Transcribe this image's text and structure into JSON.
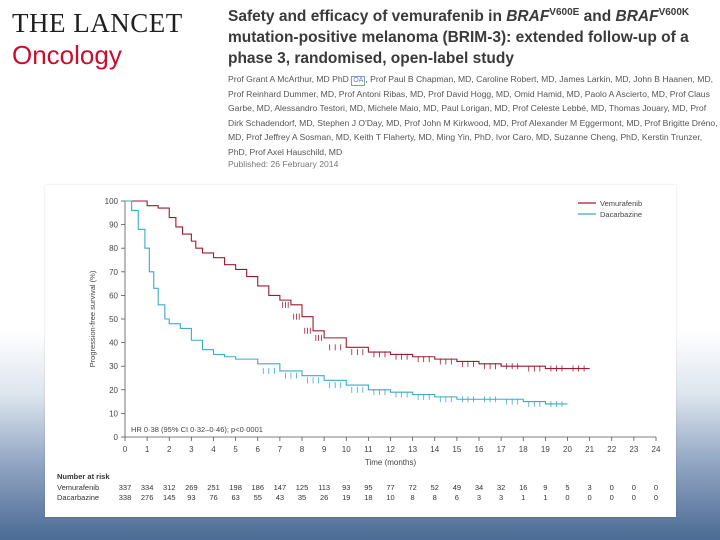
{
  "journal": {
    "name": "THE LANCET",
    "section": "Oncology"
  },
  "article": {
    "title_pre": "Safety and efficacy of vemurafenib in ",
    "gene1": "BRAF",
    "sup1": "V600E",
    "and": " and ",
    "gene2": "BRAF",
    "sup2": "V600K",
    "title_post": " mutation-positive melanoma (BRIM-3): extended follow-up of a phase 3, randomised, open-label study",
    "authors_pre": "Prof Grant A McArthur, MD PhD",
    "badge": "OA",
    "authors_post": ", Prof Paul B Chapman, MD, Caroline Robert, MD, James Larkin, MD, John B Haanen, MD, Prof Reinhard Dummer, MD, Prof Antoni Ribas, MD, Prof David Hogg, MD, Omid Hamid, MD, Paolo A Ascierto, MD, Prof Claus Garbe, MD, Alessandro Testori, MD, Michele Maio, MD, Paul Lorigan, MD, Prof Celeste Lebbé, MD, Thomas Jouary, MD, Prof Dirk Schadendorf, MD, Stephen J O'Day, MD, Prof John M Kirkwood, MD, Prof Alexander M Eggermont, MD, Prof Brigitte Dréno, MD, Prof Jeffrey A Sosman, MD, Keith T Flaherty, MD, Ming Yin, PhD, Ivor Caro, MD, Suzanne Cheng, PhD, Kerstin Trunzer, PhD, Prof Axel Hauschild, MD",
    "published": "Published: 26 February 2014"
  },
  "chart_data": {
    "type": "line",
    "title": "",
    "xlabel": "Time (months)",
    "ylabel": "Progression-free survival (%)",
    "xlim": [
      0,
      24
    ],
    "ylim": [
      0,
      100
    ],
    "xticks": [
      "0",
      "1",
      "2",
      "3",
      "4",
      "5",
      "6",
      "7",
      "8",
      "9",
      "10",
      "11",
      "12",
      "13",
      "14",
      "15",
      "16",
      "17",
      "18",
      "19",
      "20",
      "21",
      "22",
      "23",
      "24"
    ],
    "yticks": [
      "0",
      "10",
      "20",
      "30",
      "40",
      "50",
      "60",
      "70",
      "80",
      "90",
      "100"
    ],
    "annotation": "HR 0·38 (95% CI 0·32–0·46); p<0·0001",
    "legend": [
      "Vemurafenib",
      "Dacarbazine"
    ],
    "colors": [
      "#9b1b30",
      "#3fa9c9"
    ],
    "series": [
      {
        "name": "Vemurafenib",
        "x": [
          0,
          0.5,
          1,
          1.5,
          2,
          2.3,
          2.6,
          3,
          3.2,
          3.5,
          4,
          4.5,
          5,
          5.5,
          6,
          6.5,
          7,
          7.5,
          8,
          8.5,
          9,
          10,
          11,
          12,
          13,
          14,
          15,
          16,
          17,
          18,
          19,
          20,
          21
        ],
        "y": [
          100,
          100,
          98,
          97,
          93,
          89,
          86,
          83,
          80,
          78,
          76,
          73,
          71,
          68,
          64,
          60,
          58,
          56,
          51,
          45,
          42,
          38,
          36,
          35,
          34,
          33,
          32,
          31,
          30,
          30,
          29,
          29,
          29
        ]
      },
      {
        "name": "Dacarbazine",
        "x": [
          0,
          0.3,
          0.6,
          0.9,
          1.1,
          1.3,
          1.5,
          1.8,
          2,
          2.5,
          3,
          3.5,
          4,
          4.5,
          5,
          6,
          7,
          8,
          9,
          10,
          11,
          12,
          13,
          14,
          15,
          16,
          17,
          18,
          19,
          20
        ],
        "y": [
          100,
          96,
          88,
          80,
          70,
          63,
          56,
          50,
          48,
          46,
          41,
          37,
          35,
          34,
          33,
          31,
          28,
          26,
          24,
          22,
          20,
          19,
          18,
          17,
          16,
          16,
          16,
          15,
          14,
          14
        ]
      }
    ],
    "risk_table": {
      "header": "Number at risk",
      "rows": [
        {
          "label": "Vemurafenib",
          "values": [
            "337",
            "334",
            "312",
            "269",
            "251",
            "198",
            "186",
            "147",
            "125",
            "113",
            "93",
            "95",
            "77",
            "72",
            "52",
            "49",
            "34",
            "32",
            "16",
            "9",
            "5",
            "3",
            "0",
            "0",
            "0"
          ]
        },
        {
          "label": "Dacarbazine",
          "values": [
            "338",
            "276",
            "145",
            "93",
            "76",
            "63",
            "55",
            "43",
            "35",
            "26",
            "19",
            "18",
            "10",
            "8",
            "8",
            "6",
            "3",
            "3",
            "1",
            "1",
            "0",
            "0",
            "0",
            "0",
            "0"
          ]
        }
      ]
    }
  }
}
